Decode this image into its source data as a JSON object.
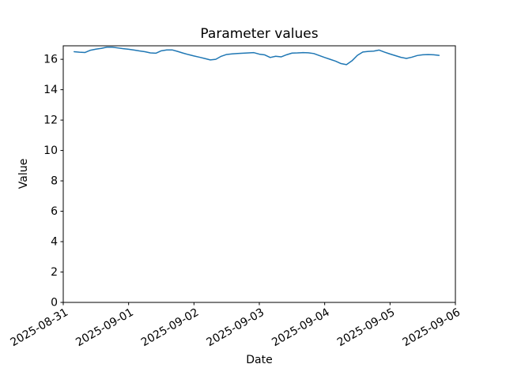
{
  "figure": {
    "title": "Parameter values",
    "xlabel": "Date",
    "ylabel": "Value"
  },
  "chart_data": {
    "type": "line",
    "title": "Parameter values",
    "xlabel": "Date",
    "ylabel": "Value",
    "grid": false,
    "legend": "none",
    "background_color": "#ffffff",
    "line_color": "#1f77b4",
    "axis_color": "#000000",
    "x_tick_labels": [
      "2025-08-31",
      "2025-09-01",
      "2025-09-02",
      "2025-09-03",
      "2025-09-04",
      "2025-09-05",
      "2025-09-06"
    ],
    "x_tick_rotation_deg": 30,
    "y_ticks": [
      0,
      2,
      4,
      6,
      8,
      10,
      12,
      14,
      16
    ],
    "ylim": [
      0,
      16.89
    ],
    "xlim_days": [
      0,
      6
    ],
    "series_start": "2025-08-31 04:00",
    "series_end": "2025-09-05 18:00",
    "x_hours_since_2025_08_31": [
      4,
      6,
      8,
      10,
      12,
      14,
      16,
      18,
      20,
      22,
      24,
      26,
      28,
      30,
      32,
      34,
      36,
      38,
      40,
      42,
      44,
      46,
      48,
      50,
      52,
      54,
      56,
      58,
      60,
      62,
      64,
      66,
      68,
      70,
      72,
      74,
      76,
      78,
      80,
      82,
      84,
      86,
      88,
      90,
      92,
      94,
      96,
      98,
      100,
      102,
      104,
      106,
      108,
      110,
      112,
      114,
      116,
      118,
      120,
      122,
      124,
      126,
      128,
      130,
      132,
      134,
      136,
      138
    ],
    "values": [
      16.5,
      16.47,
      16.45,
      16.6,
      16.67,
      16.72,
      16.8,
      16.8,
      16.75,
      16.7,
      16.66,
      16.61,
      16.55,
      16.5,
      16.42,
      16.4,
      16.56,
      16.62,
      16.62,
      16.52,
      16.41,
      16.31,
      16.22,
      16.14,
      16.05,
      15.96,
      16.0,
      16.2,
      16.32,
      16.36,
      16.38,
      16.4,
      16.42,
      16.44,
      16.34,
      16.29,
      16.12,
      16.2,
      16.16,
      16.3,
      16.41,
      16.42,
      16.44,
      16.43,
      16.38,
      16.25,
      16.12,
      16.0,
      15.88,
      15.72,
      15.65,
      15.9,
      16.26,
      16.48,
      16.52,
      16.54,
      16.61,
      16.47,
      16.35,
      16.24,
      16.13,
      16.06,
      16.14,
      16.25,
      16.3,
      16.31,
      16.3,
      16.26
    ]
  }
}
